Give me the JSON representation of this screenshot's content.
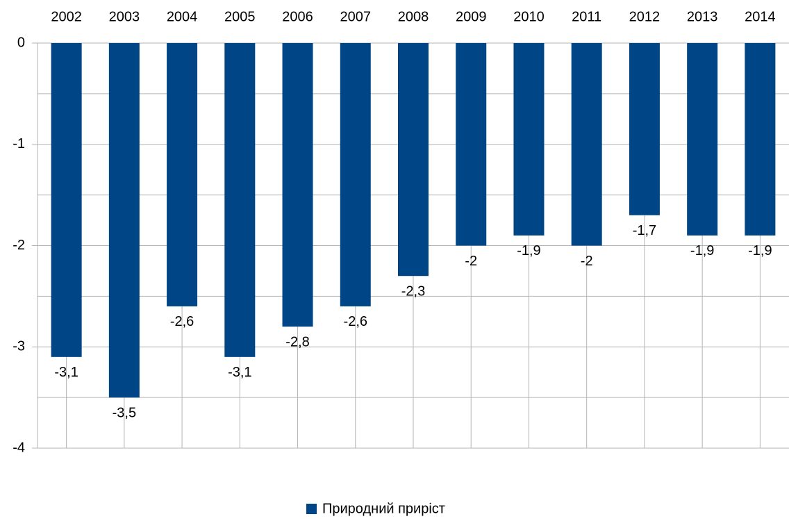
{
  "chart_data": {
    "type": "bar",
    "categories": [
      "2002",
      "2003",
      "2004",
      "2005",
      "2006",
      "2007",
      "2008",
      "2009",
      "2010",
      "2011",
      "2012",
      "2013",
      "2014"
    ],
    "series": [
      {
        "name": "Природний приріст",
        "color": "#004586",
        "values": [
          -3.1,
          -3.5,
          -2.6,
          -3.1,
          -2.8,
          -2.6,
          -2.3,
          -2,
          -1.9,
          -2,
          -1.7,
          -1.9,
          -1.9
        ],
        "value_labels": [
          "-3,1",
          "-3,5",
          "-2,6",
          "-3,1",
          "-2,8",
          "-2,6",
          "-2,3",
          "-2",
          "-1,9",
          "-2",
          "-1,7",
          "-1,9",
          "-1,9"
        ]
      }
    ],
    "ylim": [
      -4,
      0
    ],
    "yticks": [
      0,
      -1,
      -2,
      -3,
      -4
    ],
    "grid": true,
    "minor_grid": true,
    "legend": "bottom"
  }
}
